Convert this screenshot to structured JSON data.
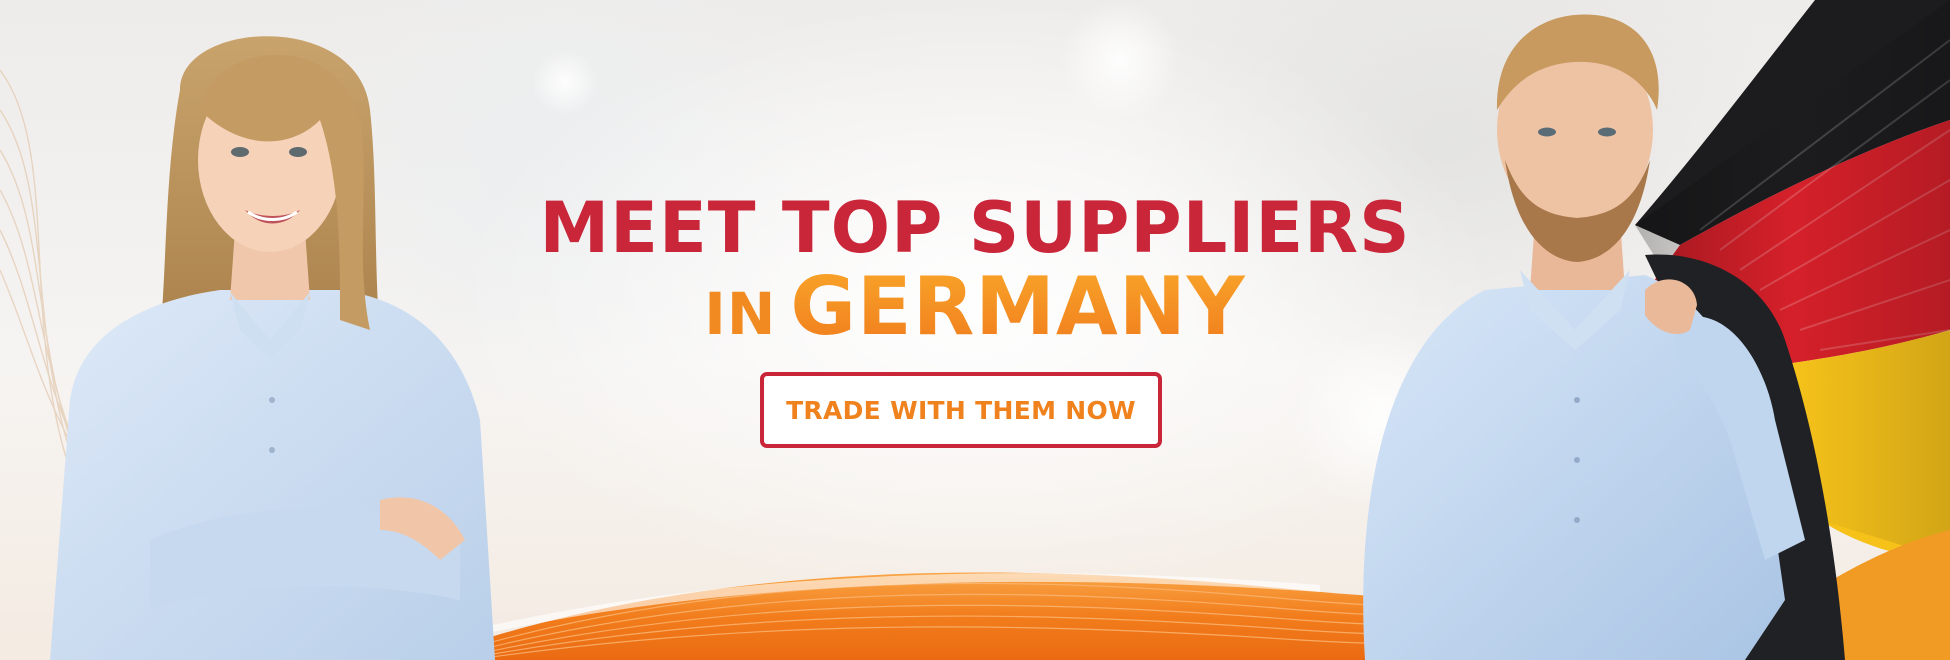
{
  "banner": {
    "headline_line1": "MEET TOP SUPPLIERS",
    "headline_line2_prefix": "IN",
    "headline_line2_country": "GERMANY",
    "cta_label": "TRADE WITH THEM NOW"
  },
  "colors": {
    "headline_red": "#c9263a",
    "headline_orange": "#f5921f",
    "button_border": "#c9263a",
    "button_text": "#f0821e",
    "wave_orange": "#f27d1c",
    "shirt_blue": "#cfe0f4",
    "flag_black": "#1c1c1e",
    "flag_red": "#d5202a",
    "flag_gold": "#f6c21a"
  },
  "images": {
    "left_person": "businesswoman-photo",
    "right_person": "businessman-photo",
    "flag": "germany-flag-graphic",
    "wave": "orange-wave-graphic"
  }
}
